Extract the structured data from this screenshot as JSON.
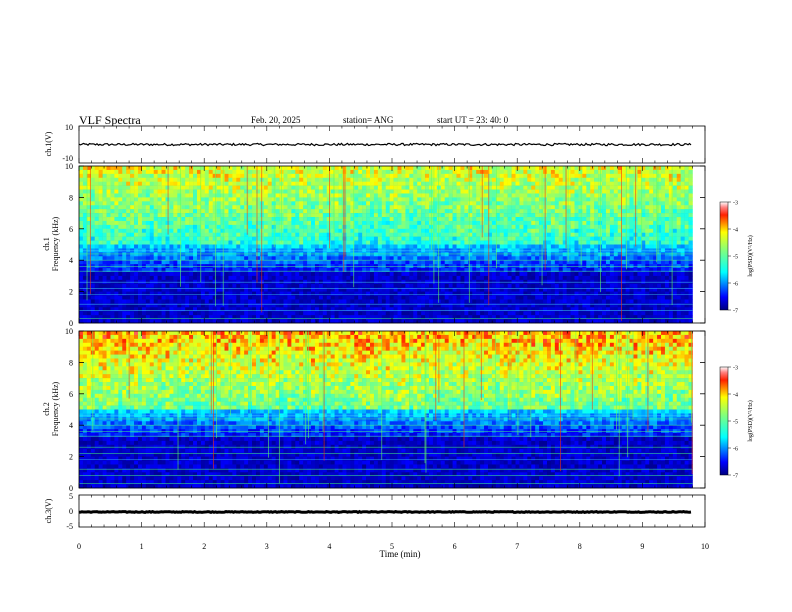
{
  "header": {
    "title": "VLF Spectra",
    "date": "Feb. 20, 2025",
    "station": "station= ANG",
    "start_ut": "start  UT  =   23: 40: 0"
  },
  "chart_data": [
    {
      "type": "line",
      "ylabel": "ch.1(V)",
      "ylim": [
        -10,
        10
      ],
      "yticks": [
        "10",
        "-10"
      ],
      "level": 0
    },
    {
      "type": "heatmap",
      "ylabel_top": "ch.1",
      "ylabel": "Frequency (kHz)",
      "ylim": [
        0,
        10
      ],
      "yticks": [
        "10",
        "8",
        "6",
        "4",
        "2",
        "0"
      ],
      "colorbar": {
        "label": "log(PSD)(V²/Hz)",
        "ticks": [
          "-3",
          "-4",
          "-5",
          "-6",
          "-7"
        ],
        "range": [
          -7,
          -3
        ]
      }
    },
    {
      "type": "heatmap",
      "ylabel_top": "ch.2",
      "ylabel": "Frequency (kHz)",
      "ylim": [
        0,
        10
      ],
      "yticks": [
        "10",
        "8",
        "6",
        "4",
        "2",
        "0"
      ],
      "colorbar": {
        "label": "log(PSD)(V²/Hz)",
        "ticks": [
          "-3",
          "-4",
          "-5",
          "-6",
          "-7"
        ],
        "range": [
          -7,
          -3
        ]
      }
    },
    {
      "type": "line",
      "ylabel": "ch.3(V)",
      "ylim": [
        -5,
        5
      ],
      "yticks": [
        "5",
        "0",
        "-5"
      ],
      "level": -0.3
    }
  ],
  "xaxis": {
    "label": "Time  (min)",
    "ticks": [
      "0",
      "1",
      "2",
      "3",
      "4",
      "5",
      "6",
      "7",
      "8",
      "9",
      "10"
    ],
    "xlim": [
      0,
      10
    ],
    "data_end": 9.8
  },
  "colors": {
    "trace": "#000000",
    "axis": "#000000"
  }
}
